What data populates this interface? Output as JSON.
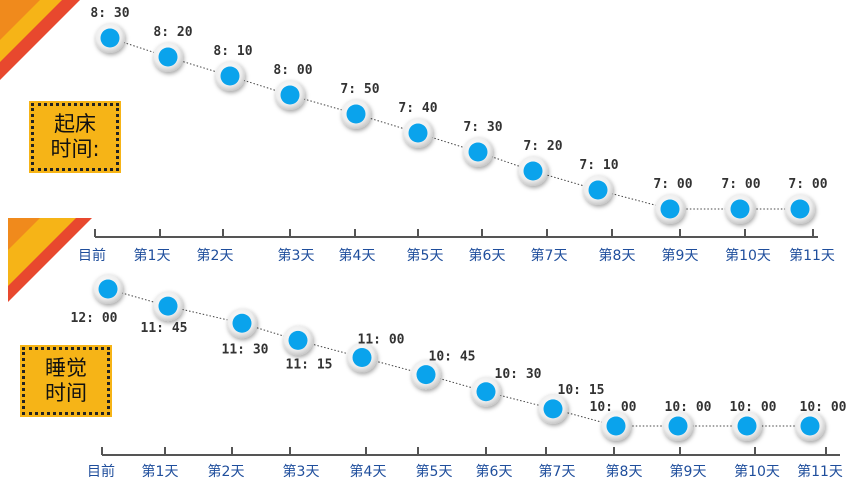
{
  "chart_data": [
    {
      "type": "line",
      "label": "起床时间:",
      "categories": [
        "目前",
        "第1天",
        "第2天",
        "第3天",
        "第4天",
        "第5天",
        "第6天",
        "第7天",
        "第8天",
        "第9天",
        "第10天",
        "第11天"
      ],
      "value_labels": [
        "8: 30",
        "8: 20",
        "8: 10",
        "8: 00",
        "7: 50",
        "7: 40",
        "7: 30",
        "7: 20",
        "7: 10",
        "7: 00",
        "7: 00",
        "7: 00"
      ],
      "values_minutes": [
        510,
        500,
        490,
        480,
        470,
        460,
        450,
        440,
        430,
        420,
        420,
        420
      ]
    },
    {
      "type": "line",
      "label": "睡觉时间",
      "categories": [
        "目前",
        "第1天",
        "第2天",
        "第3天",
        "第4天",
        "第5天",
        "第6天",
        "第7天",
        "第8天",
        "第9天",
        "第10天",
        "第11天"
      ],
      "value_labels": [
        "12: 00",
        "11: 45",
        "11: 30",
        "11: 15",
        "11: 00",
        "10: 45",
        "10: 30",
        "10: 15",
        "10: 00",
        "10: 00",
        "10: 00",
        "10: 00"
      ],
      "values_minutes": [
        720,
        705,
        690,
        675,
        660,
        645,
        630,
        615,
        600,
        600,
        600,
        600
      ]
    }
  ],
  "colors": {
    "dot": "#0aa3ec",
    "accent_orange": "#f6b417",
    "accent_red": "#e8482e",
    "axis": "#555555",
    "tick_label": "#1f4e9c"
  }
}
